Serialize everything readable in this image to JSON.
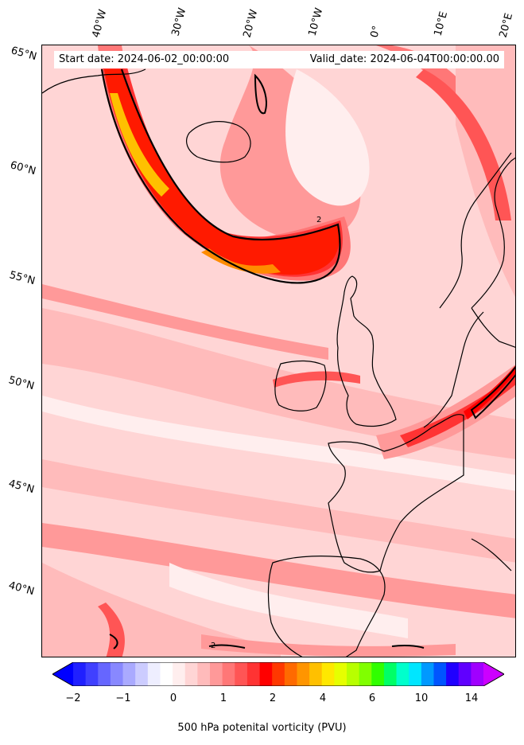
{
  "map": {
    "start_label": "Start date: 2024-06-02_00:00:00",
    "valid_label": "Valid_date: 2024-06-04T00:00:00.00",
    "lat_labels": [
      "65°N",
      "60°N",
      "55°N",
      "50°N",
      "45°N",
      "40°N"
    ],
    "lon_labels": [
      "40°W",
      "30°W",
      "20°W",
      "10°W",
      "0°",
      "10°E",
      "20°E"
    ],
    "contour_label": "2",
    "coastline_color": "#000000",
    "high_pv_color": "#ff1a00",
    "jet_core_color": "#ff8c00",
    "colorbar": {
      "title": "500 hPa potenital vorticity (PVU)",
      "ticks": [
        "−2",
        "−1",
        "0",
        "1",
        "2",
        "4",
        "6",
        "10",
        "14"
      ],
      "colors": [
        "#0000ff",
        "#2020ff",
        "#4040ff",
        "#6666ff",
        "#8888ff",
        "#aaaaff",
        "#ccccff",
        "#eeeeff",
        "#ffffff",
        "#ffeeee",
        "#ffd5d5",
        "#ffbbbb",
        "#ff9999",
        "#ff7777",
        "#ff5555",
        "#ff3333",
        "#ff0000",
        "#ff3800",
        "#ff6a00",
        "#ff9500",
        "#ffc000",
        "#ffe800",
        "#e6ff00",
        "#b8ff00",
        "#80ff00",
        "#30ff00",
        "#00ff66",
        "#00ffcc",
        "#00e6ff",
        "#0099ff",
        "#0055ff",
        "#2000ff",
        "#6000ff",
        "#a000ff",
        "#cc00ff"
      ]
    }
  }
}
